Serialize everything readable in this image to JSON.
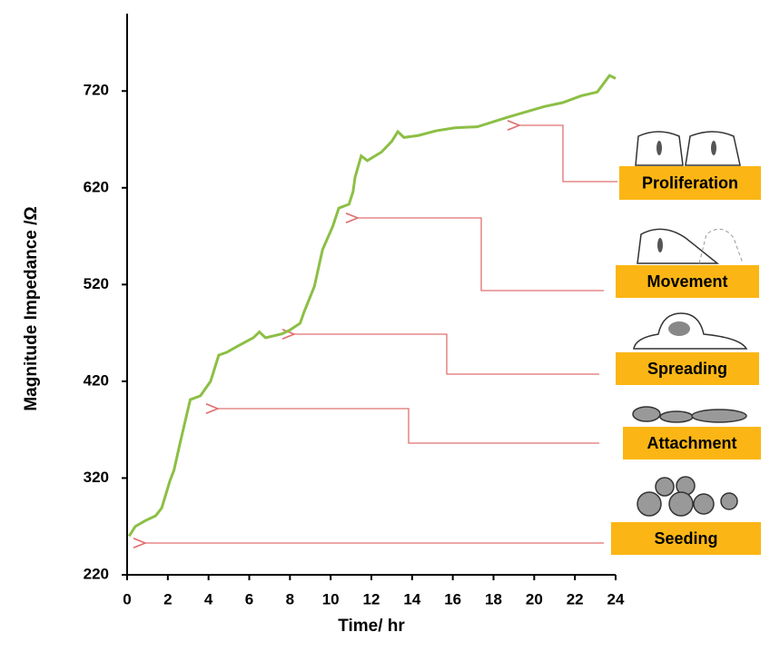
{
  "chart_data": {
    "type": "line",
    "xlabel": "Time/ hr",
    "ylabel": "Magnitude Impedance /Ω",
    "xlim": [
      0,
      24
    ],
    "xticks": [
      0,
      2,
      4,
      6,
      8,
      10,
      12,
      14,
      16,
      18,
      20,
      22,
      24
    ],
    "ylim": [
      220,
      800
    ],
    "yticks": [
      220,
      320,
      420,
      520,
      620,
      720
    ],
    "series": [
      {
        "color": "#8cbf45",
        "x": [
          0.1,
          0.4,
          0.9,
          1.4,
          1.7,
          2.1,
          2.3,
          2.6,
          3.1,
          3.6,
          3.8,
          4.1,
          4.5,
          4.9,
          5.4,
          6.2,
          6.5,
          6.8,
          7.6,
          8.0,
          8.5,
          8.7,
          9.2,
          9.6,
          10.1,
          10.4,
          10.9,
          11.1,
          11.2,
          11.5,
          11.8,
          12.5,
          13.0,
          13.3,
          13.6,
          14.3,
          15.2,
          16.1,
          17.2,
          18.7,
          20.5,
          21.4,
          22.3,
          23.1,
          23.7,
          24.0
        ],
        "values": [
          260,
          270,
          276,
          281,
          289,
          317,
          328,
          356,
          401,
          405,
          411,
          420,
          447,
          450,
          456,
          465,
          471,
          465,
          469,
          473,
          480,
          492,
          518,
          556,
          580,
          599,
          603,
          616,
          631,
          653,
          648,
          657,
          668,
          678,
          672,
          674,
          679,
          682,
          683,
          693,
          704,
          708,
          715,
          719,
          736,
          733
        ]
      }
    ],
    "annotations": [
      "Proliferation",
      "Movement",
      "Spreading",
      "Attachment",
      "Seeding"
    ]
  }
}
